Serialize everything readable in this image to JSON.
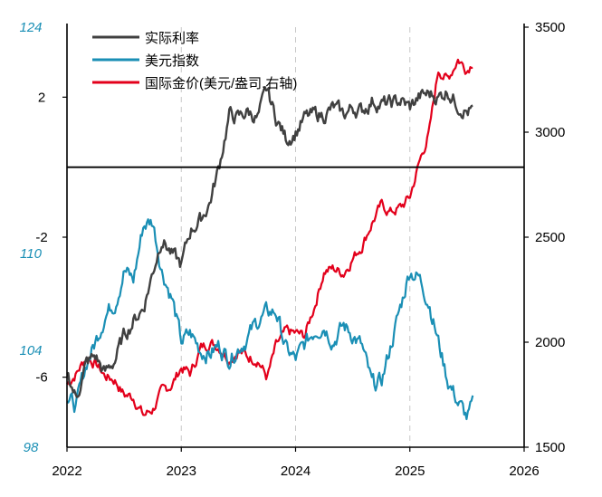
{
  "chart_data": {
    "type": "line",
    "x_ticks": [
      "2022",
      "2023",
      "2024",
      "2025",
      "2026"
    ],
    "xlim": [
      2022,
      2026
    ],
    "left_axis": {
      "ticks_real_rate": [
        "2",
        "-2",
        "-6"
      ],
      "ticks_dxy": [
        "124",
        "110",
        "104",
        "98"
      ],
      "tick_color_dxy": "#1a8fb5",
      "real_rate_range": [
        -8,
        4
      ],
      "dxy_range": [
        98,
        124
      ]
    },
    "right_axis": {
      "ticks": [
        "3500",
        "3000",
        "2500",
        "2000",
        "1500"
      ],
      "range": [
        1500,
        3500
      ]
    },
    "zero_line": 0,
    "grid": "vertical dashed at year marks",
    "legend_position": "top-left",
    "series": [
      {
        "name": "实际利率",
        "axis": "left",
        "color": "#404040",
        "x": [
          2022.0,
          2022.08,
          2022.17,
          2022.25,
          2022.33,
          2022.42,
          2022.5,
          2022.58,
          2022.67,
          2022.75,
          2022.83,
          2022.92,
          2023.0,
          2023.08,
          2023.17,
          2023.25,
          2023.33,
          2023.42,
          2023.5,
          2023.58,
          2023.67,
          2023.75,
          2023.83,
          2023.92,
          2024.0,
          2024.08,
          2024.17,
          2024.25,
          2024.33,
          2024.42,
          2024.5,
          2024.58,
          2024.67,
          2024.75,
          2024.83,
          2024.92,
          2025.0,
          2025.08,
          2025.17,
          2025.25,
          2025.33,
          2025.42,
          2025.5,
          2025.55
        ],
        "values": [
          -5.8,
          -6.6,
          -5.6,
          -5.4,
          -5.9,
          -5.5,
          -4.8,
          -4.4,
          -4.0,
          -3.0,
          -2.0,
          -2.5,
          -2.8,
          -1.8,
          -1.5,
          -1.0,
          0.0,
          1.5,
          1.4,
          1.6,
          1.4,
          2.2,
          1.4,
          0.8,
          1.0,
          1.4,
          1.5,
          1.5,
          1.7,
          1.5,
          1.7,
          1.6,
          1.9,
          1.8,
          1.8,
          1.9,
          1.7,
          2.0,
          2.1,
          2.0,
          2.2,
          1.8,
          1.6,
          1.6
        ]
      },
      {
        "name": "美元指数",
        "axis": "left",
        "color": "#1a8fb5",
        "x": [
          2022.0,
          2022.08,
          2022.17,
          2022.25,
          2022.33,
          2022.42,
          2022.5,
          2022.58,
          2022.67,
          2022.75,
          2022.83,
          2022.92,
          2023.0,
          2023.08,
          2023.17,
          2023.25,
          2023.33,
          2023.42,
          2023.5,
          2023.58,
          2023.67,
          2023.75,
          2023.83,
          2023.92,
          2024.0,
          2024.08,
          2024.17,
          2024.25,
          2024.33,
          2024.42,
          2024.5,
          2024.58,
          2024.67,
          2024.75,
          2024.83,
          2024.92,
          2025.0,
          2025.08,
          2025.17,
          2025.25,
          2025.33,
          2025.42,
          2025.5,
          2025.55
        ],
        "values": [
          101.0,
          100.5,
          103.2,
          104.5,
          106.2,
          107.0,
          109.0,
          108.3,
          111.8,
          112.0,
          109.0,
          107.2,
          104.5,
          105.0,
          104.0,
          103.8,
          104.3,
          103.5,
          104.2,
          104.8,
          105.8,
          106.3,
          106.4,
          104.0,
          103.4,
          104.3,
          105.3,
          105.6,
          104.6,
          105.5,
          105.0,
          104.2,
          101.8,
          102.0,
          104.2,
          106.7,
          109.0,
          108.5,
          107.0,
          104.5,
          102.2,
          100.8,
          99.8,
          100.5
        ]
      },
      {
        "name": "国际金价(美元/盎司,右轴)",
        "axis": "right",
        "color": "#e3001b",
        "x": [
          2022.0,
          2022.08,
          2022.17,
          2022.25,
          2022.33,
          2022.42,
          2022.5,
          2022.58,
          2022.67,
          2022.75,
          2022.83,
          2022.92,
          2023.0,
          2023.08,
          2023.17,
          2023.25,
          2023.33,
          2023.42,
          2023.5,
          2023.58,
          2023.67,
          2023.75,
          2023.83,
          2023.92,
          2024.0,
          2024.08,
          2024.17,
          2024.25,
          2024.33,
          2024.42,
          2024.5,
          2024.58,
          2024.67,
          2024.75,
          2024.83,
          2024.92,
          2025.0,
          2025.08,
          2025.17,
          2025.25,
          2025.33,
          2025.42,
          2025.5,
          2025.55
        ],
        "values": [
          1800,
          1850,
          1930,
          1900,
          1840,
          1820,
          1750,
          1740,
          1650,
          1680,
          1760,
          1800,
          1880,
          1850,
          1970,
          2000,
          1980,
          1920,
          1960,
          1930,
          1920,
          1830,
          1980,
          2050,
          2040,
          2030,
          2180,
          2340,
          2350,
          2330,
          2400,
          2460,
          2570,
          2650,
          2620,
          2640,
          2690,
          2850,
          3000,
          3300,
          3250,
          3350,
          3300,
          3340
        ]
      }
    ]
  }
}
